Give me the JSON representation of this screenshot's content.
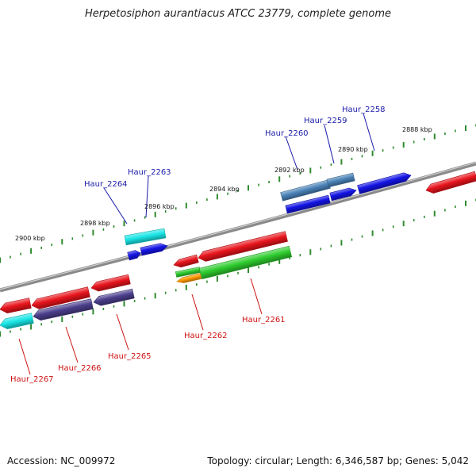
{
  "title": "Herpetosiphon aurantiacus ATCC 23779, complete genome",
  "footer": {
    "accession": "Accession: NC_009972",
    "topology": "Topology: circular; Length: 6,346,587 bp; Genes: 5,042"
  },
  "colors": {
    "backbone": "#8a8a8a",
    "tick": "#2e8b2e",
    "label_forward": "#1a1aaa",
    "label_reverse": "#cc1111",
    "red": "#e8141c",
    "blue": "#1414e6",
    "steelblue": "#4a82b8",
    "cyan": "#19e6e6",
    "green": "#2ecc2e",
    "orange": "#ff9900",
    "slate": "#4b3f8c"
  },
  "chart_data": {
    "type": "genome_map",
    "scale_labels": [
      "2888 kbp",
      "2890 kbp",
      "2892 kbp",
      "2894 kbp",
      "2896 kbp",
      "2898 kbp",
      "2900 kbp"
    ],
    "gene_labels": [
      {
        "name": "Haur_2258",
        "strand": "forward"
      },
      {
        "name": "Haur_2259",
        "strand": "forward"
      },
      {
        "name": "Haur_2260",
        "strand": "forward"
      },
      {
        "name": "Haur_2263",
        "strand": "forward"
      },
      {
        "name": "Haur_2264",
        "strand": "forward"
      },
      {
        "name": "Haur_2261",
        "strand": "reverse"
      },
      {
        "name": "Haur_2262",
        "strand": "reverse"
      },
      {
        "name": "Haur_2265",
        "strand": "reverse"
      },
      {
        "name": "Haur_2266",
        "strand": "reverse"
      },
      {
        "name": "Haur_2267",
        "strand": "reverse"
      }
    ]
  }
}
